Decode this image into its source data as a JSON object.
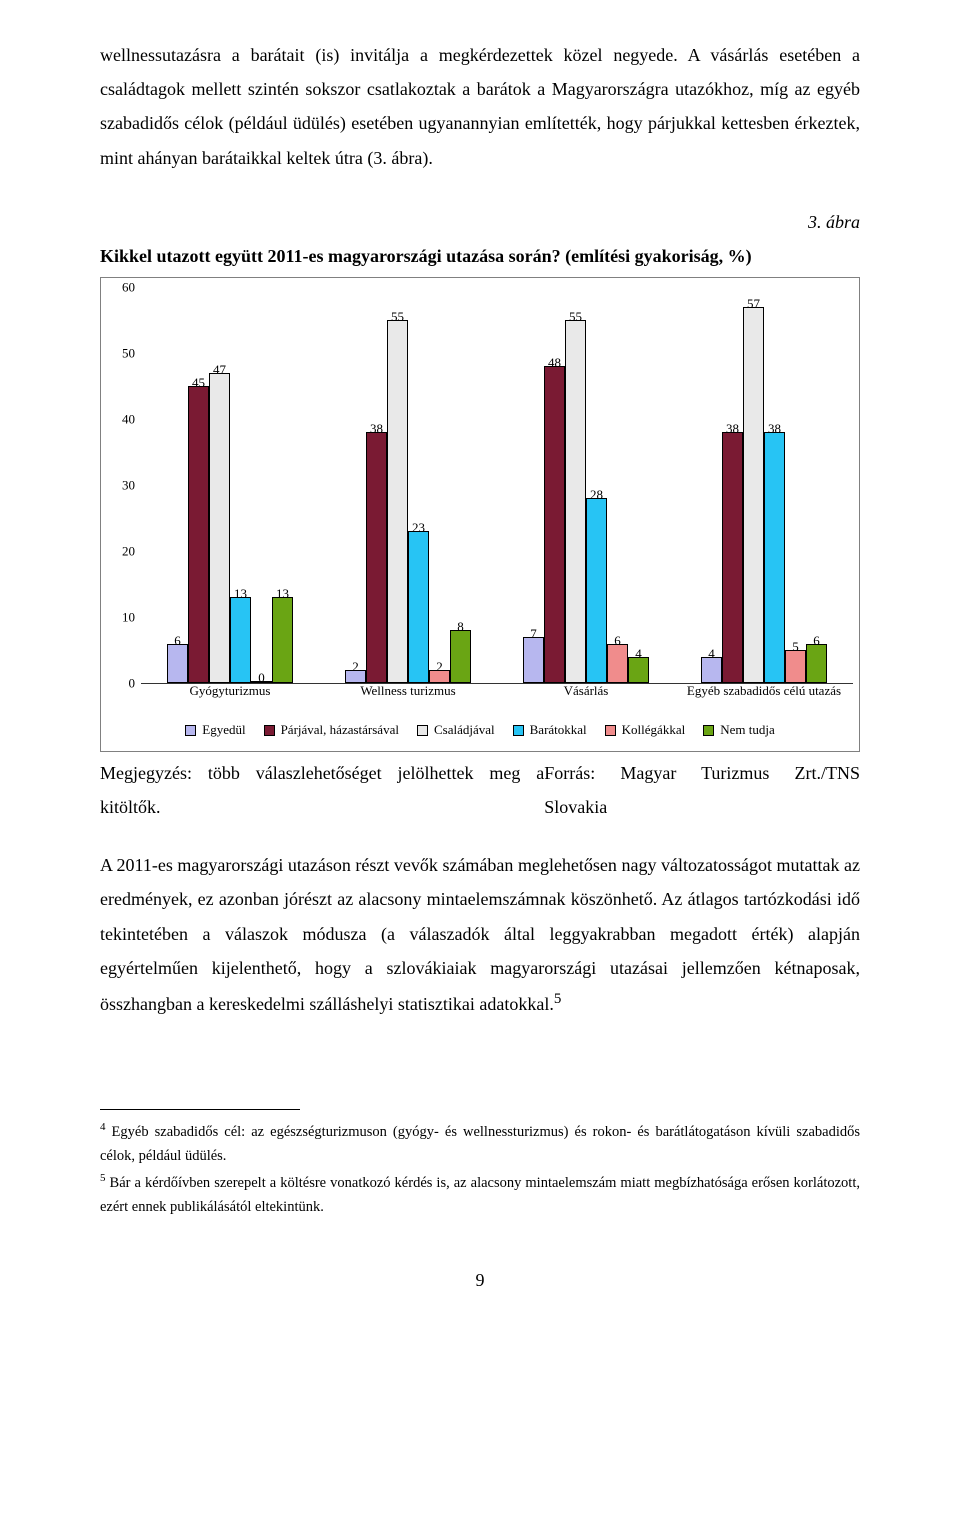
{
  "para1": "wellnessutazásra a barátait (is) invitálja a megkérdezettek közel negyede. A vásárlás esetében a családtagok mellett szintén sokszor csatlakoztak a barátok a Magyarországra utazókhoz, míg az egyéb szabadidős célok (például üdülés) esetében ugyanannyian említették, hogy párjukkal kettesben érkeztek, mint ahányan barátaikkal keltek útra (3. ábra).",
  "fig_label": "3. ábra",
  "chart": {
    "title": "Kikkel utazott együtt 2011-es magyarországi utazása során? (említési gyakoriság, %)",
    "ymax": 60,
    "yticks": [
      0,
      10,
      20,
      30,
      40,
      50,
      60
    ],
    "categories": [
      "Gyógyturizmus",
      "Wellness turizmus",
      "Vásárlás",
      "Egyéb szabadidős célú utazás"
    ],
    "series": [
      {
        "label": "Egyedül",
        "color": "#b7b7ef"
      },
      {
        "label": "Párjával, házastársával",
        "color": "#7a1a33"
      },
      {
        "label": "Családjával",
        "color": "#e9e9e9"
      },
      {
        "label": "Barátokkal",
        "color": "#27c4f4"
      },
      {
        "label": "Kollégákkal",
        "color": "#f08c8c"
      },
      {
        "label": "Nem tudja",
        "color": "#6aa514"
      }
    ],
    "data": [
      [
        6,
        45,
        47,
        13,
        0,
        13
      ],
      [
        2,
        38,
        55,
        23,
        2,
        8
      ],
      [
        7,
        48,
        55,
        28,
        6,
        4
      ],
      [
        4,
        38,
        57,
        38,
        5,
        6
      ]
    ]
  },
  "note_left": "Megjegyzés: több válaszlehetőséget jelölhettek meg a kitöltők.",
  "note_right": "Forrás: Magyar Turizmus Zrt./TNS Slovakia",
  "para2": "A 2011-es magyarországi utazáson részt vevők számában meglehetősen nagy változatosságot mutattak az eredmények, ez azonban jórészt az alacsony mintaelemszámnak köszönhető. Az átlagos tartózkodási idő tekintetében a válaszok módusza (a válaszadók által leggyakrabban megadott érték) alapján egyértelműen kijelenthető, hogy a szlovákiaiak magyarországi utazásai jellemzően kétnaposak, összhangban a kereskedelmi szálláshelyi statisztikai adatokkal.",
  "para2_ref": "5",
  "footnote4_ref": "4",
  "footnote4": " Egyéb szabadidős cél: az egészségturizmuson (gyógy- és wellnessturizmus) és rokon- és barátlátogatáson kívüli szabadidős célok, például üdülés.",
  "footnote5_ref": "5",
  "footnote5": " Bár a kérdőívben szerepelt a költésre vonatkozó kérdés is, az alacsony mintaelemszám miatt megbízhatósága erősen korlátozott, ezért ennek publikálásától eltekintünk.",
  "page_number": "9"
}
